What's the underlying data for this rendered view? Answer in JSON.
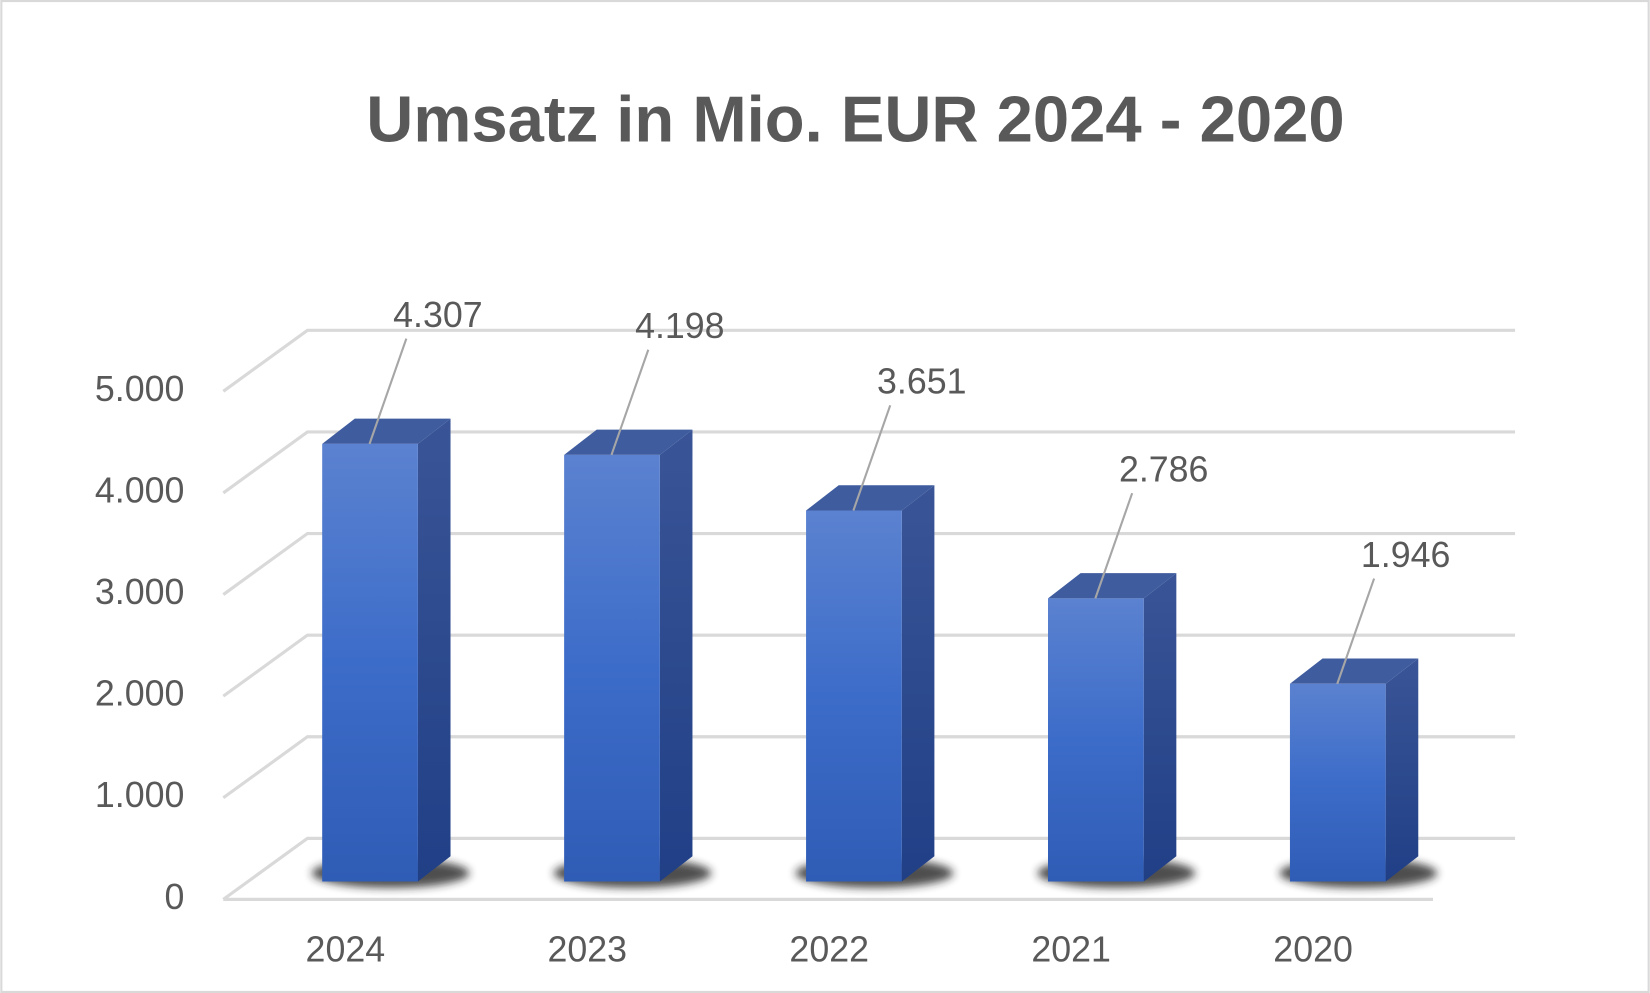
{
  "chart_data": {
    "type": "bar3d",
    "title": "Umsatz in Mio. EUR 2024 - 2020",
    "categories": [
      "2024",
      "2023",
      "2022",
      "2021",
      "2020"
    ],
    "values": [
      4307,
      4198,
      3651,
      2786,
      1946
    ],
    "value_labels": [
      "4.307",
      "4.198",
      "3.651",
      "2.786",
      "1.946"
    ],
    "color": "#4472c4",
    "ylim": [
      0,
      5000
    ],
    "yticks": [
      0,
      {
        "value": 1000,
        "label": "1.000"
      },
      {
        "value": 2000,
        "label": "2.000"
      },
      {
        "value": 3000,
        "label": "3.000"
      },
      {
        "value": 4000,
        "label": "4.000"
      },
      {
        "value": 5000,
        "label": "5.000"
      }
    ],
    "grid": true
  }
}
